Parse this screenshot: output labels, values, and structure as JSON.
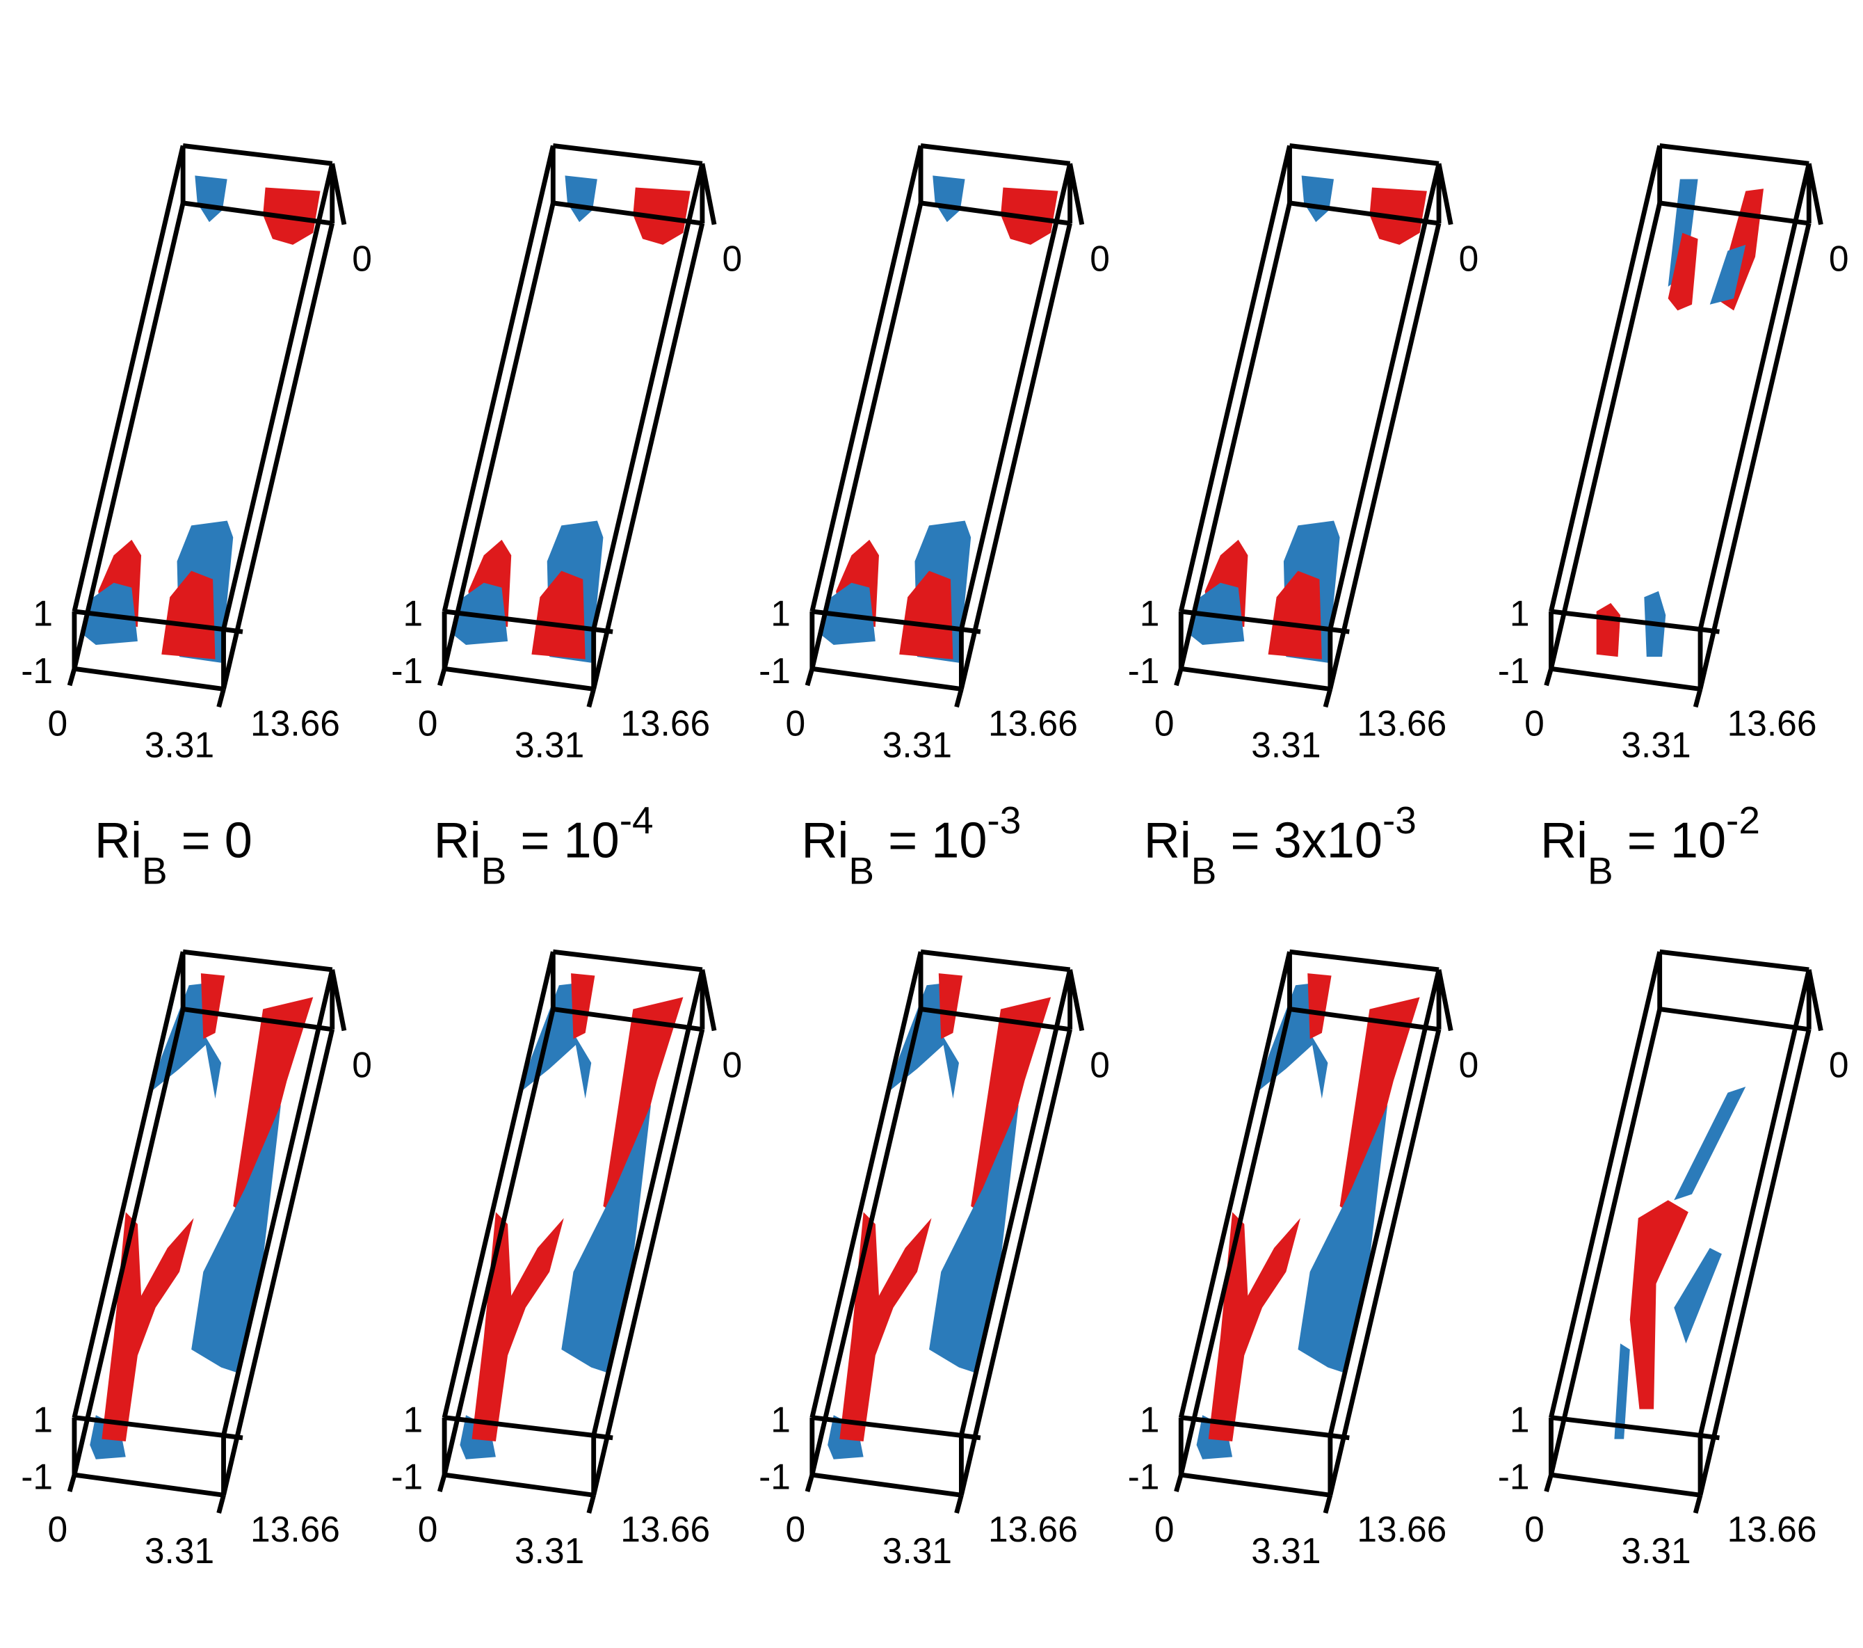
{
  "axis_labels": {
    "x_start": "0",
    "x_mid": "3.31",
    "x_end": "13.66",
    "z_top": "1",
    "z_bottom": "-1",
    "y_start": "0"
  },
  "captions": [
    {
      "base": "Ri",
      "sub": "B",
      "text": " = 0"
    },
    {
      "base": "Ri",
      "sub": "B",
      "text": " = 10",
      "sup": "-4"
    },
    {
      "base": "Ri",
      "sub": "B",
      "text": " = 10",
      "sup": "-3"
    },
    {
      "base": "Ri",
      "sub": "B",
      "text": " = 3x10",
      "sup": "-3"
    },
    {
      "base": "Ri",
      "sub": "B",
      "text": " = 10",
      "sup": "-2"
    }
  ]
}
